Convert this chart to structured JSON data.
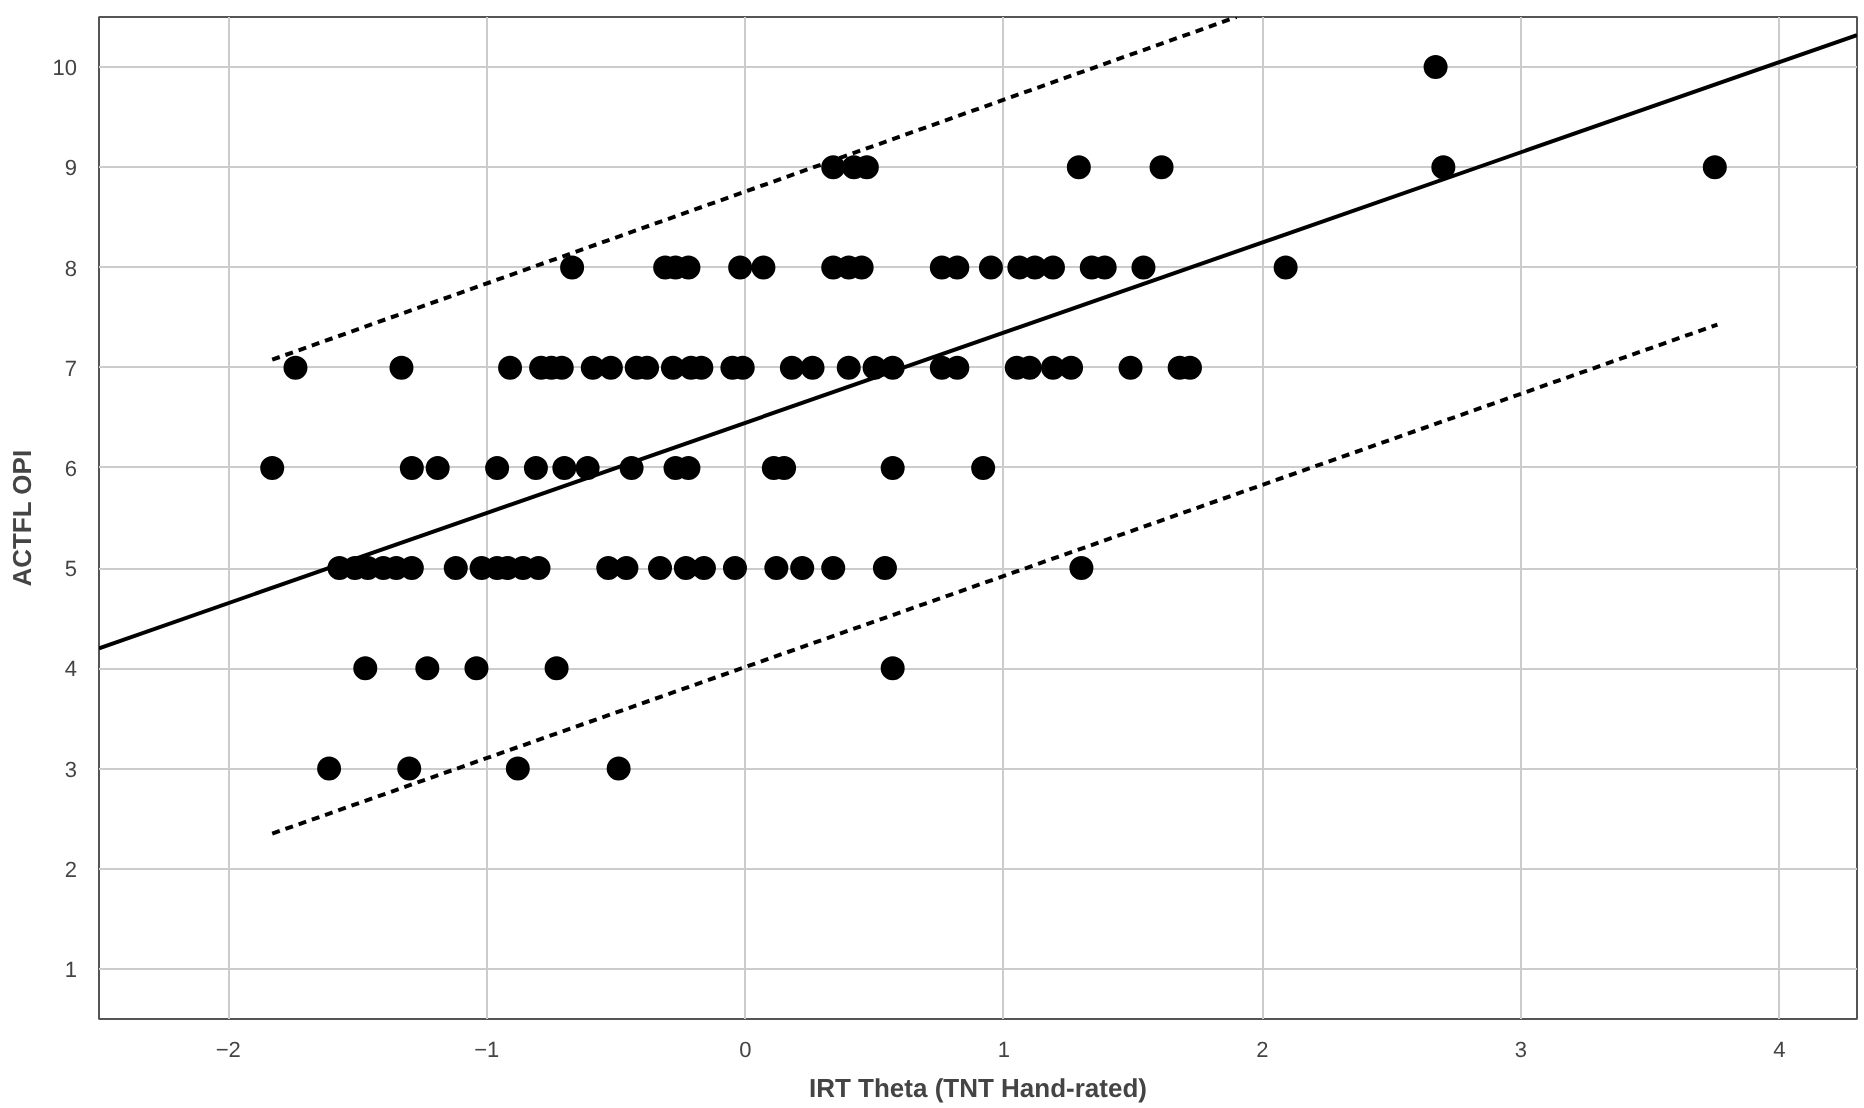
{
  "chart_data": {
    "type": "scatter",
    "xlabel": "IRT Theta (TNT Hand-rated)",
    "ylabel": "ACTFL OPI",
    "xlim": [
      -2.5,
      4.3
    ],
    "ylim": [
      0.5,
      10.5
    ],
    "xticks": [
      -2,
      -1,
      0,
      1,
      2,
      3,
      4
    ],
    "yticks": [
      1,
      2,
      3,
      4,
      5,
      6,
      7,
      8,
      9,
      10
    ],
    "grid": true,
    "series": [
      {
        "marker": "circle",
        "color": "#000000",
        "x": [
          2.67,
          0.34,
          0.42,
          0.47,
          1.29,
          1.61,
          2.7,
          3.75,
          -0.67,
          -0.31,
          -0.27,
          -0.22,
          -0.02,
          0.07,
          0.34,
          0.4,
          0.45,
          0.76,
          0.82,
          0.95,
          1.06,
          1.12,
          1.19,
          1.34,
          1.39,
          1.54,
          2.09,
          -1.74,
          -1.33,
          -0.91,
          -0.79,
          -0.75,
          -0.71,
          -0.59,
          -0.52,
          -0.42,
          -0.38,
          -0.28,
          -0.21,
          -0.17,
          -0.05,
          -0.01,
          0.18,
          0.26,
          0.4,
          0.5,
          0.57,
          0.76,
          0.82,
          1.05,
          1.1,
          1.19,
          1.26,
          1.49,
          1.68,
          1.72,
          -1.83,
          -1.29,
          -1.19,
          -0.96,
          -0.81,
          -0.7,
          -0.61,
          -0.44,
          -0.27,
          -0.22,
          0.11,
          0.15,
          0.57,
          0.92,
          -1.57,
          -1.51,
          -1.46,
          -1.4,
          -1.35,
          -1.29,
          -1.12,
          -1.02,
          -0.96,
          -0.92,
          -0.86,
          -0.8,
          -0.53,
          -0.46,
          -0.33,
          -0.23,
          -0.16,
          -0.04,
          0.12,
          0.22,
          0.34,
          0.54,
          1.3,
          -1.47,
          -1.23,
          -1.04,
          -0.73,
          0.57,
          -1.61,
          -1.3,
          -0.88,
          -0.49
        ],
        "values": [
          10,
          9,
          9,
          9,
          9,
          9,
          9,
          9,
          8,
          8,
          8,
          8,
          8,
          8,
          8,
          8,
          8,
          8,
          8,
          8,
          8,
          8,
          8,
          8,
          8,
          8,
          8,
          7,
          7,
          7,
          7,
          7,
          7,
          7,
          7,
          7,
          7,
          7,
          7,
          7,
          7,
          7,
          7,
          7,
          7,
          7,
          7,
          7,
          7,
          7,
          7,
          7,
          7,
          7,
          7,
          7,
          6,
          6,
          6,
          6,
          6,
          6,
          6,
          6,
          6,
          6,
          6,
          6,
          6,
          6,
          5,
          5,
          5,
          5,
          5,
          5,
          5,
          5,
          5,
          5,
          5,
          5,
          5,
          5,
          5,
          5,
          5,
          5,
          5,
          5,
          5,
          5,
          5,
          4,
          4,
          4,
          4,
          4,
          3,
          3,
          3,
          3
        ]
      },
      {
        "type": "line",
        "color": "#000000",
        "line_style": "solid",
        "x": [
          -2.5,
          4.3
        ],
        "values": [
          4.2,
          10.32
        ]
      },
      {
        "type": "line",
        "color": "#000000",
        "line_style": "dashed",
        "x": [
          -1.83,
          1.9
        ],
        "values": [
          7.08,
          10.5
        ]
      },
      {
        "type": "line",
        "color": "#000000",
        "line_style": "dashed",
        "x": [
          -1.83,
          3.76
        ],
        "values": [
          2.35,
          7.43
        ]
      }
    ]
  }
}
